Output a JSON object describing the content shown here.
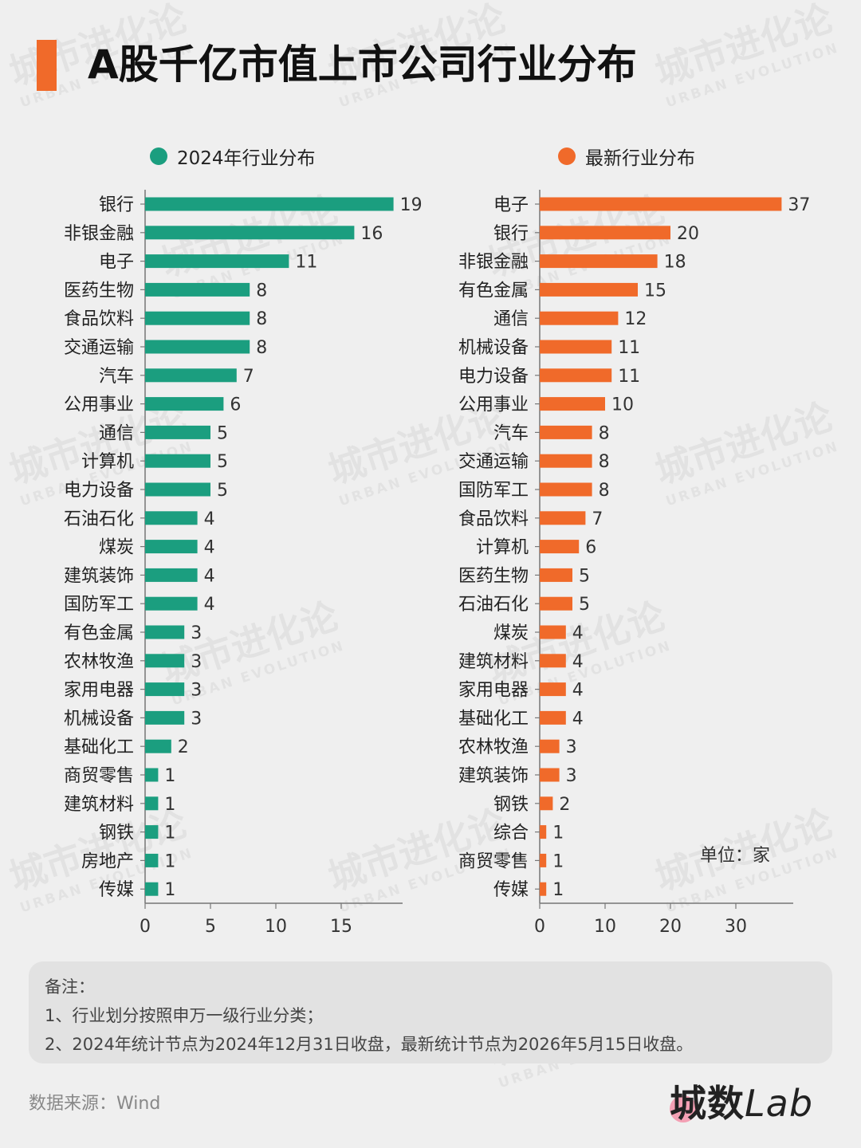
{
  "title": "A股千亿市值上市公司行业分布",
  "watermark": {
    "cn": "城市进化论",
    "en": "URBAN EVOLUTION"
  },
  "colors": {
    "accent": "#f06a2a",
    "left_series": "#1b9e7f",
    "right_series": "#f06a2a"
  },
  "legend": {
    "left": "2024年行业分布",
    "right": "最新行业分布"
  },
  "unit_label": "单位：家",
  "notes": {
    "heading": "备注：",
    "line1": "1、行业划分按照申万一级行业分类；",
    "line2": "2、2024年统计节点为2024年12月31日收盘，最新统计节点为2026年5月15日收盘。"
  },
  "source": "数据来源：Wind",
  "logo": {
    "text": "城数",
    "suffix": "Lab"
  },
  "chart_data": [
    {
      "type": "bar",
      "orientation": "horizontal",
      "series_name": "2024年行业分布",
      "categories": [
        "银行",
        "非银金融",
        "电子",
        "医药生物",
        "食品饮料",
        "交通运输",
        "汽车",
        "公用事业",
        "通信",
        "计算机",
        "电力设备",
        "石油石化",
        "煤炭",
        "建筑装饰",
        "国防军工",
        "有色金属",
        "农林牧渔",
        "家用电器",
        "机械设备",
        "基础化工",
        "商贸零售",
        "建筑材料",
        "钢铁",
        "房地产",
        "传媒"
      ],
      "values": [
        19,
        16,
        11,
        8,
        8,
        8,
        7,
        6,
        5,
        5,
        5,
        4,
        4,
        4,
        4,
        3,
        3,
        3,
        3,
        2,
        1,
        1,
        1,
        1,
        1
      ],
      "xticks": [
        0,
        5,
        10,
        15
      ],
      "xlim": [
        0,
        20
      ]
    },
    {
      "type": "bar",
      "orientation": "horizontal",
      "series_name": "最新行业分布",
      "categories": [
        "电子",
        "银行",
        "非银金融",
        "有色金属",
        "通信",
        "机械设备",
        "电力设备",
        "公用事业",
        "汽车",
        "交通运输",
        "国防军工",
        "食品饮料",
        "计算机",
        "医药生物",
        "石油石化",
        "煤炭",
        "建筑材料",
        "家用电器",
        "基础化工",
        "农林牧渔",
        "建筑装饰",
        "钢铁",
        "综合",
        "商贸零售",
        "传媒"
      ],
      "values": [
        37,
        20,
        18,
        15,
        12,
        11,
        11,
        10,
        8,
        8,
        8,
        7,
        6,
        5,
        5,
        4,
        4,
        4,
        4,
        3,
        3,
        2,
        1,
        1,
        1
      ],
      "xticks": [
        0,
        10,
        20,
        30
      ],
      "xlim": [
        0,
        39
      ]
    }
  ]
}
